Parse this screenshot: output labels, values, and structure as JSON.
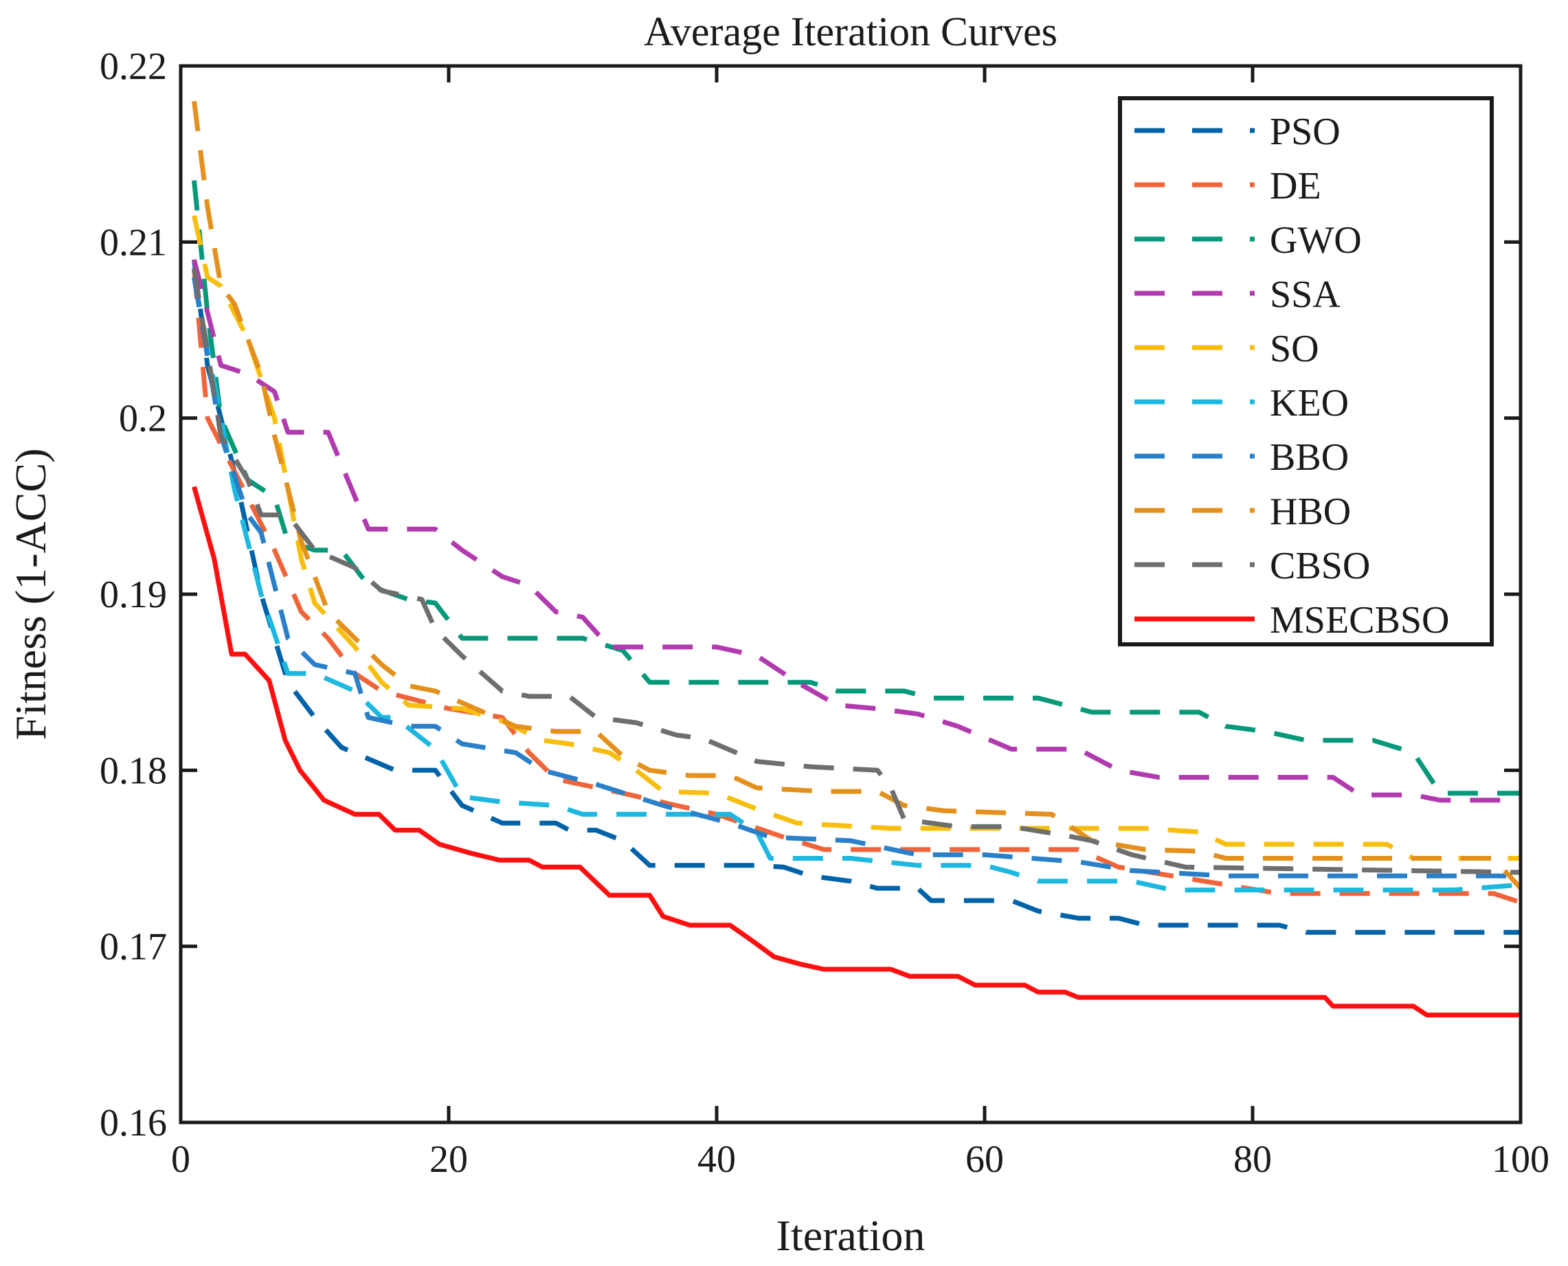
{
  "chart_data": {
    "type": "line",
    "title": "Average Iteration Curves",
    "xlabel": "Iteration",
    "ylabel": "Fitness (1-ACC)",
    "xlim": [
      0,
      100
    ],
    "ylim": [
      0.16,
      0.22
    ],
    "xticks": [
      0,
      20,
      40,
      60,
      80,
      100
    ],
    "xtick_labels": [
      "0",
      "20",
      "40",
      "60",
      "80",
      "100"
    ],
    "yticks": [
      0.16,
      0.17,
      0.18,
      0.19,
      0.2,
      0.21,
      0.22
    ],
    "ytick_labels": [
      "0.16",
      "0.17",
      "0.18",
      "0.19",
      "0.2",
      "0.21",
      "0.22"
    ],
    "grid": false,
    "legend_position": "top-right",
    "series": [
      {
        "name": "PSO",
        "color": "#0063A8",
        "style": "dashed",
        "points": [
          [
            1,
            0.209
          ],
          [
            2,
            0.203
          ],
          [
            4,
            0.197
          ],
          [
            6,
            0.19
          ],
          [
            8,
            0.185
          ],
          [
            10,
            0.183
          ],
          [
            12,
            0.1813
          ],
          [
            16,
            0.18
          ],
          [
            19,
            0.18
          ],
          [
            21,
            0.178
          ],
          [
            24,
            0.177
          ],
          [
            28,
            0.177
          ],
          [
            29,
            0.1766
          ],
          [
            31,
            0.1766
          ],
          [
            33,
            0.176
          ],
          [
            35,
            0.1746
          ],
          [
            43,
            0.1746
          ],
          [
            45,
            0.1745
          ],
          [
            47,
            0.174
          ],
          [
            50,
            0.1737
          ],
          [
            52,
            0.1733
          ],
          [
            55,
            0.1733
          ],
          [
            56,
            0.1726
          ],
          [
            62,
            0.1726
          ],
          [
            64,
            0.172
          ],
          [
            67,
            0.1716
          ],
          [
            70,
            0.1716
          ],
          [
            72,
            0.1712
          ],
          [
            82,
            0.1712
          ],
          [
            84,
            0.1708
          ],
          [
            100,
            0.1708
          ]
        ]
      },
      {
        "name": "DE",
        "color": "#F0643A",
        "style": "dashed",
        "points": [
          [
            1,
            0.2085
          ],
          [
            2,
            0.2
          ],
          [
            4,
            0.197
          ],
          [
            7,
            0.1925
          ],
          [
            9,
            0.189
          ],
          [
            11,
            0.1875
          ],
          [
            13,
            0.1855
          ],
          [
            15,
            0.1845
          ],
          [
            20,
            0.1835
          ],
          [
            24,
            0.183
          ],
          [
            26,
            0.181
          ],
          [
            28,
            0.1795
          ],
          [
            33,
            0.1787
          ],
          [
            37,
            0.178
          ],
          [
            40,
            0.1775
          ],
          [
            45,
            0.1762
          ],
          [
            48,
            0.1755
          ],
          [
            67,
            0.1755
          ],
          [
            70,
            0.1745
          ],
          [
            78,
            0.1735
          ],
          [
            82,
            0.173
          ],
          [
            98,
            0.173
          ],
          [
            100,
            0.1725
          ]
        ]
      },
      {
        "name": "GWO",
        "color": "#05997A",
        "style": "dashed",
        "points": [
          [
            1,
            0.2135
          ],
          [
            2,
            0.206
          ],
          [
            3,
            0.2
          ],
          [
            5,
            0.1965
          ],
          [
            7,
            0.1955
          ],
          [
            8,
            0.193
          ],
          [
            10,
            0.1925
          ],
          [
            12,
            0.1925
          ],
          [
            14,
            0.1905
          ],
          [
            17,
            0.1897
          ],
          [
            19,
            0.1895
          ],
          [
            21,
            0.1875
          ],
          [
            30,
            0.1875
          ],
          [
            33,
            0.1868
          ],
          [
            35,
            0.185
          ],
          [
            47,
            0.185
          ],
          [
            49,
            0.1845
          ],
          [
            54,
            0.1845
          ],
          [
            56,
            0.1841
          ],
          [
            64,
            0.1841
          ],
          [
            68,
            0.1833
          ],
          [
            76,
            0.1833
          ],
          [
            78,
            0.1825
          ],
          [
            81,
            0.1822
          ],
          [
            84,
            0.1817
          ],
          [
            89,
            0.1817
          ],
          [
            92,
            0.181
          ],
          [
            94,
            0.1787
          ],
          [
            100,
            0.1787
          ]
        ]
      },
      {
        "name": "SSA",
        "color": "#B03AAE",
        "style": "dashed",
        "points": [
          [
            1,
            0.209
          ],
          [
            3,
            0.203
          ],
          [
            5,
            0.2025
          ],
          [
            7,
            0.2015
          ],
          [
            8,
            0.1992
          ],
          [
            11,
            0.1992
          ],
          [
            14,
            0.1937
          ],
          [
            19,
            0.1937
          ],
          [
            21,
            0.1925
          ],
          [
            24,
            0.191
          ],
          [
            26,
            0.1905
          ],
          [
            28,
            0.189
          ],
          [
            30,
            0.1887
          ],
          [
            32,
            0.187
          ],
          [
            40,
            0.187
          ],
          [
            43,
            0.1865
          ],
          [
            46,
            0.185
          ],
          [
            49,
            0.1837
          ],
          [
            52,
            0.1835
          ],
          [
            55,
            0.1832
          ],
          [
            58,
            0.1825
          ],
          [
            62,
            0.1812
          ],
          [
            67,
            0.1812
          ],
          [
            70,
            0.18
          ],
          [
            73,
            0.1796
          ],
          [
            86,
            0.1796
          ],
          [
            88,
            0.1786
          ],
          [
            92,
            0.1786
          ],
          [
            94,
            0.1783
          ],
          [
            100,
            0.1783
          ]
        ]
      },
      {
        "name": "SO",
        "color": "#F7BE0E",
        "style": "dashed",
        "points": [
          [
            1,
            0.2115
          ],
          [
            2,
            0.208
          ],
          [
            3,
            0.2075
          ],
          [
            5,
            0.2045
          ],
          [
            7,
            0.2
          ],
          [
            8,
            0.196
          ],
          [
            9,
            0.192
          ],
          [
            10,
            0.1895
          ],
          [
            13,
            0.187
          ],
          [
            15,
            0.185
          ],
          [
            17,
            0.1837
          ],
          [
            21,
            0.1835
          ],
          [
            24,
            0.1828
          ],
          [
            27,
            0.1817
          ],
          [
            29,
            0.1815
          ],
          [
            32,
            0.181
          ],
          [
            34,
            0.18
          ],
          [
            36,
            0.1788
          ],
          [
            40,
            0.1787
          ],
          [
            43,
            0.1778
          ],
          [
            46,
            0.177
          ],
          [
            53,
            0.1767
          ],
          [
            72,
            0.1767
          ],
          [
            76,
            0.1765
          ],
          [
            78,
            0.1758
          ],
          [
            90,
            0.1758
          ],
          [
            92,
            0.175
          ],
          [
            100,
            0.175
          ]
        ]
      },
      {
        "name": "KEO",
        "color": "#1DB8DF",
        "style": "dashed",
        "points": [
          [
            1,
            0.208
          ],
          [
            3,
            0.2
          ],
          [
            4,
            0.196
          ],
          [
            6,
            0.19
          ],
          [
            8,
            0.1855
          ],
          [
            10,
            0.1855
          ],
          [
            13,
            0.1845
          ],
          [
            15,
            0.183
          ],
          [
            16,
            0.183
          ],
          [
            19,
            0.1812
          ],
          [
            21,
            0.1785
          ],
          [
            24,
            0.1782
          ],
          [
            28,
            0.178
          ],
          [
            30,
            0.1775
          ],
          [
            41,
            0.1775
          ],
          [
            43,
            0.1765
          ],
          [
            44,
            0.175
          ],
          [
            50,
            0.175
          ],
          [
            55,
            0.1746
          ],
          [
            60,
            0.1746
          ],
          [
            62,
            0.1742
          ],
          [
            64,
            0.1737
          ],
          [
            71,
            0.1737
          ],
          [
            74,
            0.1732
          ],
          [
            95,
            0.1732
          ],
          [
            100,
            0.1735
          ]
        ]
      },
      {
        "name": "BBO",
        "color": "#2A80C8",
        "style": "dashed",
        "points": [
          [
            1,
            0.208
          ],
          [
            3,
            0.199
          ],
          [
            5,
            0.1945
          ],
          [
            6,
            0.1935
          ],
          [
            8,
            0.1875
          ],
          [
            10,
            0.186
          ],
          [
            13,
            0.1855
          ],
          [
            14,
            0.183
          ],
          [
            17,
            0.1825
          ],
          [
            19,
            0.1825
          ],
          [
            21,
            0.1815
          ],
          [
            25,
            0.181
          ],
          [
            27,
            0.18
          ],
          [
            31,
            0.1792
          ],
          [
            36,
            0.178
          ],
          [
            41,
            0.177
          ],
          [
            44,
            0.1762
          ],
          [
            50,
            0.176
          ],
          [
            55,
            0.1752
          ],
          [
            60,
            0.1752
          ],
          [
            67,
            0.1748
          ],
          [
            71,
            0.1743
          ],
          [
            78,
            0.174
          ],
          [
            100,
            0.174
          ]
        ]
      },
      {
        "name": "HBO",
        "color": "#E3901C",
        "style": "dashed",
        "points": [
          [
            1,
            0.218
          ],
          [
            2,
            0.212
          ],
          [
            3,
            0.2075
          ],
          [
            4,
            0.2065
          ],
          [
            6,
            0.2025
          ],
          [
            7,
            0.199
          ],
          [
            9,
            0.193
          ],
          [
            11,
            0.189
          ],
          [
            13,
            0.1875
          ],
          [
            15,
            0.186
          ],
          [
            17,
            0.1848
          ],
          [
            19,
            0.1845
          ],
          [
            22,
            0.1835
          ],
          [
            25,
            0.1825
          ],
          [
            28,
            0.1822
          ],
          [
            31,
            0.1822
          ],
          [
            33,
            0.1808
          ],
          [
            35,
            0.18
          ],
          [
            38,
            0.1797
          ],
          [
            41,
            0.1797
          ],
          [
            43,
            0.179
          ],
          [
            48,
            0.1788
          ],
          [
            52,
            0.1788
          ],
          [
            54,
            0.178
          ],
          [
            57,
            0.1777
          ],
          [
            65,
            0.1775
          ],
          [
            68,
            0.176
          ],
          [
            72,
            0.1755
          ],
          [
            76,
            0.1754
          ],
          [
            78,
            0.175
          ],
          [
            98,
            0.175
          ],
          [
            100,
            0.1733
          ]
        ]
      },
      {
        "name": "CBSO",
        "color": "#6E6E6E",
        "style": "dashed",
        "points": [
          [
            1,
            0.2085
          ],
          [
            3,
            0.199
          ],
          [
            5,
            0.1965
          ],
          [
            6,
            0.1945
          ],
          [
            8,
            0.1945
          ],
          [
            10,
            0.1925
          ],
          [
            13,
            0.1915
          ],
          [
            15,
            0.1902
          ],
          [
            18,
            0.1897
          ],
          [
            19,
            0.188
          ],
          [
            21,
            0.1865
          ],
          [
            24,
            0.1845
          ],
          [
            26,
            0.1842
          ],
          [
            29,
            0.1842
          ],
          [
            31,
            0.183
          ],
          [
            34,
            0.1827
          ],
          [
            37,
            0.182
          ],
          [
            39,
            0.1818
          ],
          [
            43,
            0.1805
          ],
          [
            47,
            0.1802
          ],
          [
            52,
            0.18
          ],
          [
            53,
            0.179
          ],
          [
            54,
            0.1772
          ],
          [
            58,
            0.1768
          ],
          [
            62,
            0.1768
          ],
          [
            66,
            0.1763
          ],
          [
            68,
            0.176
          ],
          [
            71,
            0.1752
          ],
          [
            75,
            0.1745
          ],
          [
            100,
            0.1742
          ]
        ]
      },
      {
        "name": "MSECBSO",
        "color": "#FF1010",
        "style": "solid",
        "points": [
          [
            1,
            0.1961
          ],
          [
            2.5,
            0.192
          ],
          [
            3.8,
            0.1866
          ],
          [
            4.8,
            0.1866
          ],
          [
            6.6,
            0.1851
          ],
          [
            7.8,
            0.1817
          ],
          [
            8.9,
            0.18
          ],
          [
            10.7,
            0.1783
          ],
          [
            13,
            0.1775
          ],
          [
            14.8,
            0.1775
          ],
          [
            16,
            0.1766
          ],
          [
            17.8,
            0.1766
          ],
          [
            19.3,
            0.1758
          ],
          [
            21.6,
            0.1753
          ],
          [
            23.8,
            0.1749
          ],
          [
            26,
            0.1749
          ],
          [
            27,
            0.1745
          ],
          [
            29.8,
            0.1745
          ],
          [
            32,
            0.1729
          ],
          [
            35,
            0.1729
          ],
          [
            36,
            0.1717
          ],
          [
            38,
            0.1712
          ],
          [
            41,
            0.1712
          ],
          [
            42.5,
            0.1704
          ],
          [
            44.3,
            0.1694
          ],
          [
            46.2,
            0.169
          ],
          [
            48,
            0.1687
          ],
          [
            53,
            0.1687
          ],
          [
            54.4,
            0.1683
          ],
          [
            58,
            0.1683
          ],
          [
            59.3,
            0.1678
          ],
          [
            63,
            0.1678
          ],
          [
            64,
            0.1674
          ],
          [
            66,
            0.1674
          ],
          [
            67,
            0.1671
          ],
          [
            85.4,
            0.1671
          ],
          [
            86,
            0.1666
          ],
          [
            92,
            0.1666
          ],
          [
            93,
            0.1661
          ],
          [
            100,
            0.1661
          ]
        ]
      }
    ]
  }
}
